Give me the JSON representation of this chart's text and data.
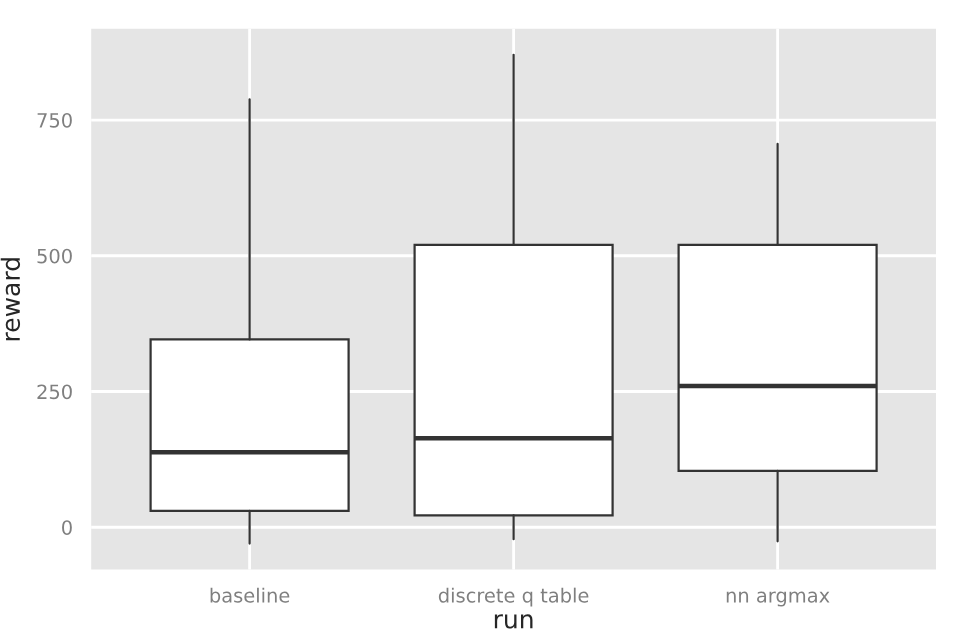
{
  "chart_data": {
    "type": "box",
    "xlabel": "run",
    "ylabel": "reward",
    "categories": [
      "baseline",
      "discrete q table",
      "nn argmax"
    ],
    "boxes": [
      {
        "low": -30,
        "q1": 30,
        "median": 138,
        "q3": 346,
        "high": 788
      },
      {
        "low": -22,
        "q1": 22,
        "median": 164,
        "q3": 520,
        "high": 870
      },
      {
        "low": -26,
        "q1": 104,
        "median": 260,
        "q3": 520,
        "high": 706
      }
    ],
    "ylim": [
      -78,
      918
    ],
    "yticks": [
      0,
      250,
      500,
      750
    ],
    "grid": true
  }
}
